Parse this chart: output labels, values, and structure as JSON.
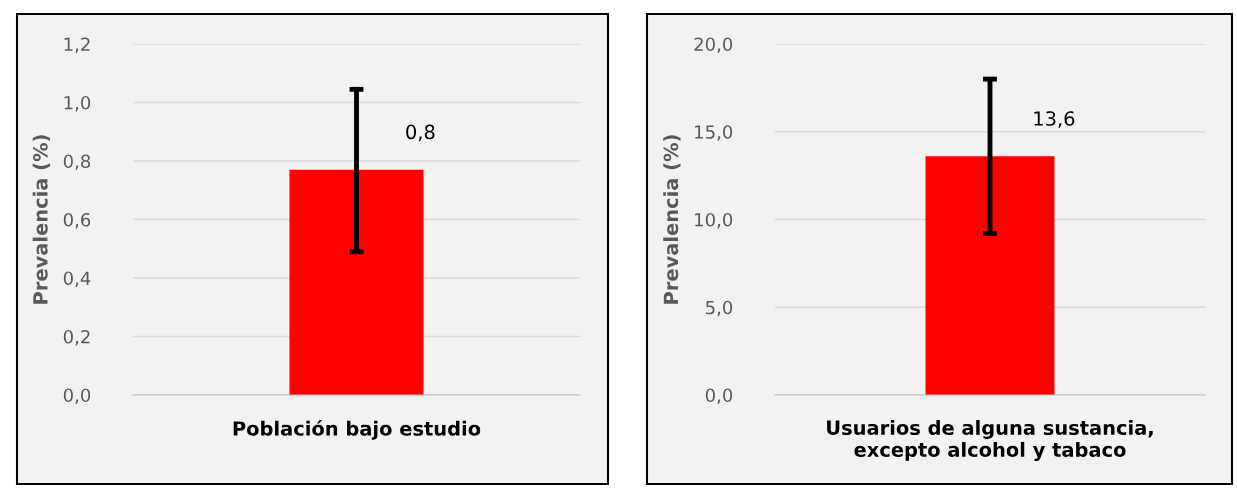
{
  "chart_data": [
    {
      "type": "bar",
      "ylabel": "Prevalencia (%)",
      "categories": [
        "Población bajo estudio"
      ],
      "values": [
        0.77
      ],
      "color": "#ff0000",
      "errors": [
        [
          0.49,
          1.045
        ]
      ],
      "value_labels": [
        "0,8"
      ],
      "ylim": [
        0,
        1.2
      ],
      "yticks": [
        {
          "value": 0,
          "label": "0,0"
        },
        {
          "value": 0.2,
          "label": "0,2"
        },
        {
          "value": 0.4,
          "label": "0,4"
        },
        {
          "value": 0.6,
          "label": "0,6"
        },
        {
          "value": 0.8,
          "label": "0,8"
        },
        {
          "value": 1.0,
          "label": "1,0"
        },
        {
          "value": 1.2,
          "label": "1,2"
        }
      ],
      "grid": "y"
    },
    {
      "type": "bar",
      "ylabel": "Prevalencia (%)",
      "categories": [
        "Usuarios de alguna sustancia, excepto alcohol y tabaco"
      ],
      "values": [
        13.6
      ],
      "color": "#ff0000",
      "errors": [
        [
          9.2,
          18.0
        ]
      ],
      "value_labels": [
        "13,6"
      ],
      "ylim": [
        0,
        20
      ],
      "yticks": [
        {
          "value": 0,
          "label": "0,0"
        },
        {
          "value": 5,
          "label": "5,0"
        },
        {
          "value": 10,
          "label": "10,0"
        },
        {
          "value": 15,
          "label": "15,0"
        },
        {
          "value": 20,
          "label": "20,0"
        }
      ],
      "grid": "y"
    }
  ]
}
